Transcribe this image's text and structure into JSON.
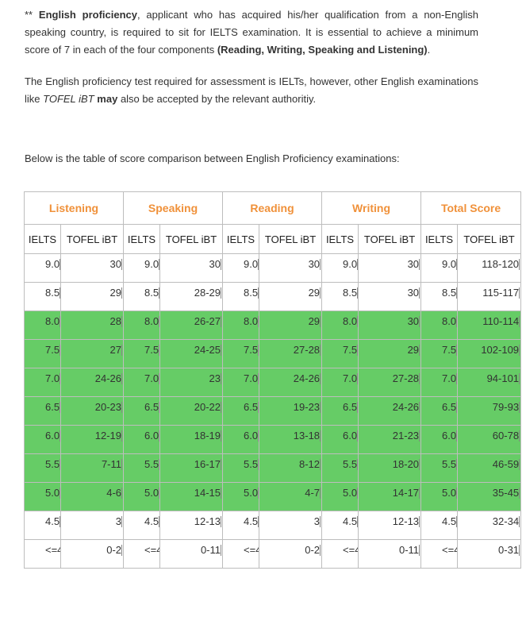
{
  "paragraphs": {
    "p1": {
      "prefix": "** ",
      "bold1": "English proficiency",
      "text1": ", applicant who has acquired his/her qualification from a non-English speaking country, is required to sit for IELTS examination. It is essential to achieve a minimum score of 7 in each of the four components ",
      "bold2": "(Reading, Writing, Speaking and Listening)",
      "text2": "."
    },
    "p2": {
      "text1": "The English proficiency test required for assessment is IELTs, however, other English examinations like ",
      "italic": "TOFEL iBT",
      "text2": " ",
      "bold": "may",
      "text3": " also be accepted by the  relevant authoritiy."
    },
    "p3": "Below is the table of score comparison between English Proficiency examinations:"
  },
  "table": {
    "group_headers": [
      "Listening",
      "Speaking",
      "Reading",
      "Writing",
      "Total Score"
    ],
    "sub_headers": [
      "IELTS",
      "TOFEL iBT"
    ],
    "rows": [
      {
        "highlight": false,
        "cells": [
          "9.0",
          "30",
          "9.0",
          "30",
          "9.0",
          "30",
          "9.0",
          "30",
          "9.0",
          "118-120"
        ]
      },
      {
        "highlight": false,
        "cells": [
          "8.5",
          "29",
          "8.5",
          "28-29",
          "8.5",
          "29",
          "8.5",
          "30",
          "8.5",
          "115-117"
        ]
      },
      {
        "highlight": true,
        "cells": [
          "8.0",
          "28",
          "8.0",
          "26-27",
          "8.0",
          "29",
          "8.0",
          "30",
          "8.0",
          "110-114"
        ]
      },
      {
        "highlight": true,
        "cells": [
          "7.5",
          "27",
          "7.5",
          "24-25",
          "7.5",
          "27-28",
          "7.5",
          "29",
          "7.5",
          "102-109"
        ]
      },
      {
        "highlight": true,
        "cells": [
          "7.0",
          "24-26",
          "7.0",
          "23",
          "7.0",
          "24-26",
          "7.0",
          "27-28",
          "7.0",
          "94-101"
        ]
      },
      {
        "highlight": true,
        "cells": [
          "6.5",
          "20-23",
          "6.5",
          "20-22",
          "6.5",
          "19-23",
          "6.5",
          "24-26",
          "6.5",
          "79-93"
        ]
      },
      {
        "highlight": true,
        "cells": [
          "6.0",
          "12-19",
          "6.0",
          "18-19",
          "6.0",
          "13-18",
          "6.0",
          "21-23",
          "6.0",
          "60-78"
        ]
      },
      {
        "highlight": true,
        "cells": [
          "5.5",
          "7-11",
          "5.5",
          "16-17",
          "5.5",
          "8-12",
          "5.5",
          "18-20",
          "5.5",
          "46-59"
        ]
      },
      {
        "highlight": true,
        "cells": [
          "5.0",
          "4-6",
          "5.0",
          "14-15",
          "5.0",
          "4-7",
          "5.0",
          "14-17",
          "5.0",
          "35-45"
        ]
      },
      {
        "highlight": false,
        "cells": [
          "4.5",
          "3",
          "4.5",
          "12-13",
          "4.5",
          "3",
          "4.5",
          "12-13",
          "4.5",
          "32-34"
        ]
      },
      {
        "highlight": false,
        "cells": [
          "<=4",
          "0-2",
          "<=4",
          "0-11",
          "<=4",
          "0-2",
          "<=4",
          "0-11",
          "<=4",
          "0-31"
        ]
      }
    ]
  },
  "colors": {
    "header_text": "#f0913a",
    "highlight_row": "#66cc66",
    "body_text": "#333333",
    "border": "#bdbdbd"
  }
}
